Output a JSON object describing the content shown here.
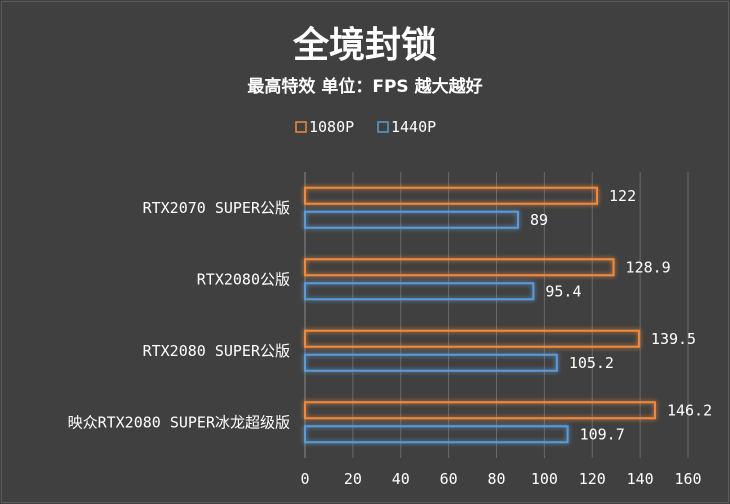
{
  "chart_data": {
    "type": "bar",
    "orientation": "horizontal",
    "title": "全境封锁",
    "subtitle": "最高特效 单位：FPS 越大越好",
    "categories": [
      "RTX2070 SUPER公版",
      "RTX2080公版",
      "RTX2080 SUPER公版",
      "映众RTX2080 SUPER冰龙超级版"
    ],
    "series": [
      {
        "name": "1080P",
        "color": "#f08a3c",
        "values": [
          122,
          128.9,
          139.5,
          146.2
        ],
        "labels": [
          "122",
          "128.9",
          "139.5",
          "146.2"
        ]
      },
      {
        "name": "1440P",
        "color": "#5b9bd5",
        "values": [
          89,
          95.4,
          105.2,
          109.7
        ],
        "labels": [
          "89",
          "95.4",
          "105.2",
          "109.7"
        ]
      }
    ],
    "xlim": [
      0,
      160
    ],
    "xticks": [
      "0",
      "20",
      "40",
      "60",
      "80",
      "100",
      "120",
      "140",
      "160"
    ],
    "grid": true,
    "legend_position": "top"
  }
}
